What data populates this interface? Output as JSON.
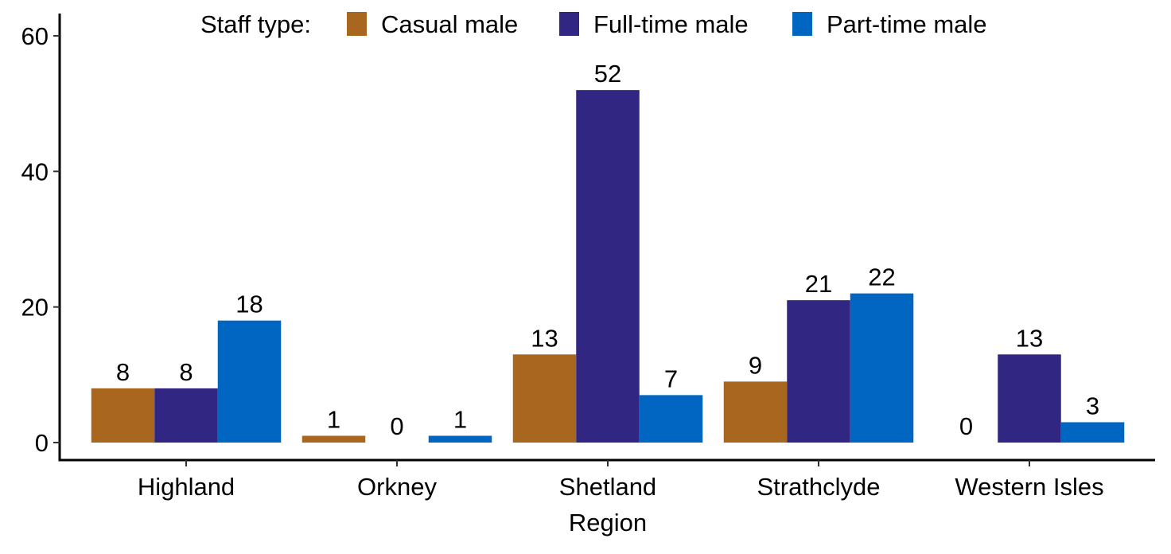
{
  "chart_data": {
    "type": "bar",
    "title": "",
    "xlabel": "Region",
    "ylabel": "",
    "categories": [
      "Highland",
      "Orkney",
      "Shetland",
      "Strathclyde",
      "Western Isles"
    ],
    "series": [
      {
        "name": "Casual male",
        "color": "#A8661F",
        "values": [
          8,
          1,
          13,
          9,
          0
        ]
      },
      {
        "name": "Full-time male",
        "color": "#312681",
        "values": [
          8,
          0,
          52,
          21,
          13
        ]
      },
      {
        "name": "Part-time male",
        "color": "#0066C1",
        "values": [
          18,
          1,
          7,
          22,
          3
        ]
      }
    ],
    "ylim": [
      0,
      60
    ],
    "yticks": [
      0,
      20,
      40,
      60
    ],
    "grid": false,
    "legend": {
      "title": "Staff type:",
      "position": "top"
    },
    "data_labels": true
  }
}
